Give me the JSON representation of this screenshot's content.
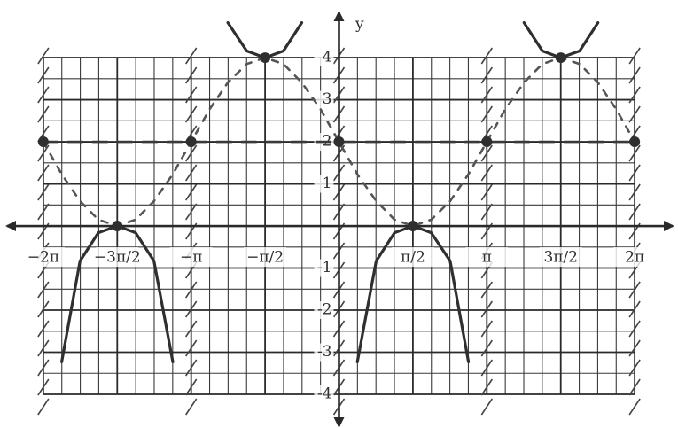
{
  "chart_data": {
    "type": "line",
    "y_label": "y",
    "xlim": [
      -7.2,
      7.2
    ],
    "ylim": [
      -4.8,
      5.37
    ],
    "xticks": [
      {
        "value": -6.28,
        "label": "−2π"
      },
      {
        "value": -4.71,
        "label": "−3π/2"
      },
      {
        "value": -3.14,
        "label": "−π"
      },
      {
        "value": -1.57,
        "label": "−π/2"
      },
      {
        "value": 1.57,
        "label": "π/2"
      },
      {
        "value": 3.14,
        "label": "π"
      },
      {
        "value": 4.71,
        "label": "3π/2"
      },
      {
        "value": 6.28,
        "label": "2π"
      }
    ],
    "yticks": [
      -4,
      -3,
      -2,
      -1,
      1,
      2,
      3,
      4
    ],
    "grid": true,
    "asymptotes": [
      -6.28,
      -3.14,
      0,
      3.14,
      6.28
    ],
    "series": [
      {
        "style": "dashed",
        "color": "#555555",
        "x": [
          -6.28,
          -5.89,
          -5.5,
          -5.11,
          -4.71,
          -4.32,
          -3.93,
          -3.53,
          -3.14,
          -2.75,
          -2.36,
          -1.96,
          -1.57,
          -1.18,
          -0.79,
          -0.39,
          0,
          0.39,
          0.79,
          1.18,
          1.57,
          1.96,
          2.36,
          2.75,
          3.14,
          3.53,
          3.93,
          4.32,
          4.71,
          5.11,
          5.5,
          5.89,
          6.28
        ],
        "values": [
          2,
          1.23,
          0.59,
          0.15,
          0,
          0.15,
          0.59,
          1.23,
          2,
          2.77,
          3.41,
          3.85,
          4,
          3.85,
          3.41,
          2.77,
          2,
          1.23,
          0.59,
          0.15,
          0,
          0.15,
          0.59,
          1.23,
          2,
          2.77,
          3.41,
          3.85,
          4,
          3.85,
          3.41,
          2.77,
          2
        ]
      },
      {
        "style": "long-dashed",
        "color": "#3a3a3a",
        "x": [
          -6.28,
          6.28
        ],
        "values": [
          2,
          2
        ]
      },
      {
        "style": "solid",
        "color": "#2f2f2f",
        "x": [
          -5.89,
          -5.5,
          -5.11,
          -4.71,
          -4.32,
          -3.93,
          -3.53,
          null,
          -2.36,
          -1.96,
          -1.57,
          -1.18,
          -0.79,
          null,
          0.39,
          0.79,
          1.18,
          1.57,
          1.96,
          2.36,
          2.75,
          null,
          3.93,
          4.32,
          4.71,
          5.11,
          5.5
        ],
        "values": [
          -3.23,
          -0.83,
          -0.16,
          0,
          -0.16,
          -0.83,
          -3.23,
          null,
          4.83,
          4.16,
          4,
          4.16,
          4.83,
          null,
          -3.23,
          -0.83,
          -0.16,
          0,
          -0.16,
          -0.83,
          -3.23,
          null,
          4.83,
          4.16,
          4,
          4.16,
          4.83
        ]
      },
      {
        "style": "points",
        "color": "#2f2f2f",
        "x": [
          -6.28,
          -4.71,
          -3.14,
          -1.57,
          0,
          1.57,
          3.14,
          4.71,
          6.28
        ],
        "values": [
          2,
          0,
          2,
          4,
          2,
          0,
          2,
          4,
          2
        ]
      }
    ]
  }
}
